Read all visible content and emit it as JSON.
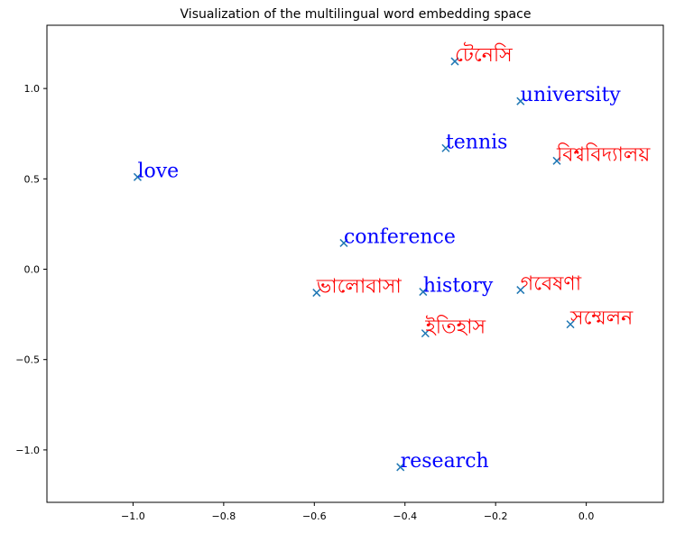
{
  "chart_data": {
    "type": "scatter",
    "title": "Visualization of the multilingual word embedding space",
    "xlabel": "",
    "ylabel": "",
    "xlim": [
      -1.19,
      0.17
    ],
    "ylim": [
      -1.29,
      1.35
    ],
    "xticks": [
      -1.0,
      -0.8,
      -0.6,
      -0.4,
      -0.2,
      0.0
    ],
    "xtick_labels": [
      "−1.0",
      "−0.8",
      "−0.6",
      "−0.4",
      "−0.2",
      "0.0"
    ],
    "yticks": [
      1.0,
      0.5,
      0.0,
      -0.5,
      -1.0
    ],
    "ytick_labels": [
      "1.0",
      "0.5",
      "0.0",
      "−0.5",
      "−1.0"
    ],
    "grid": false,
    "marker_color": "#1f77b4",
    "points": [
      {
        "label": "টেনেসি",
        "x": -0.29,
        "y": 1.15,
        "color": "#ff0000"
      },
      {
        "label": "university",
        "x": -0.145,
        "y": 0.93,
        "color": "#0000ff"
      },
      {
        "label": "tennis",
        "x": -0.31,
        "y": 0.67,
        "color": "#0000ff"
      },
      {
        "label": "বিশ্ববিদ্যালয়",
        "x": -0.065,
        "y": 0.6,
        "color": "#ff0000"
      },
      {
        "label": "love",
        "x": -0.99,
        "y": 0.51,
        "color": "#0000ff"
      },
      {
        "label": "conference",
        "x": -0.535,
        "y": 0.145,
        "color": "#0000ff"
      },
      {
        "label": "ভালোবাসা",
        "x": -0.595,
        "y": -0.13,
        "color": "#ff0000"
      },
      {
        "label": "history",
        "x": -0.36,
        "y": -0.125,
        "color": "#0000ff"
      },
      {
        "label": "গবেষণা",
        "x": -0.145,
        "y": -0.115,
        "color": "#ff0000"
      },
      {
        "label": "সম্মেলন",
        "x": -0.035,
        "y": -0.305,
        "color": "#ff0000"
      },
      {
        "label": "ইতিহাস",
        "x": -0.355,
        "y": -0.355,
        "color": "#ff0000"
      },
      {
        "label": "research",
        "x": -0.41,
        "y": -1.095,
        "color": "#0000ff"
      }
    ]
  }
}
